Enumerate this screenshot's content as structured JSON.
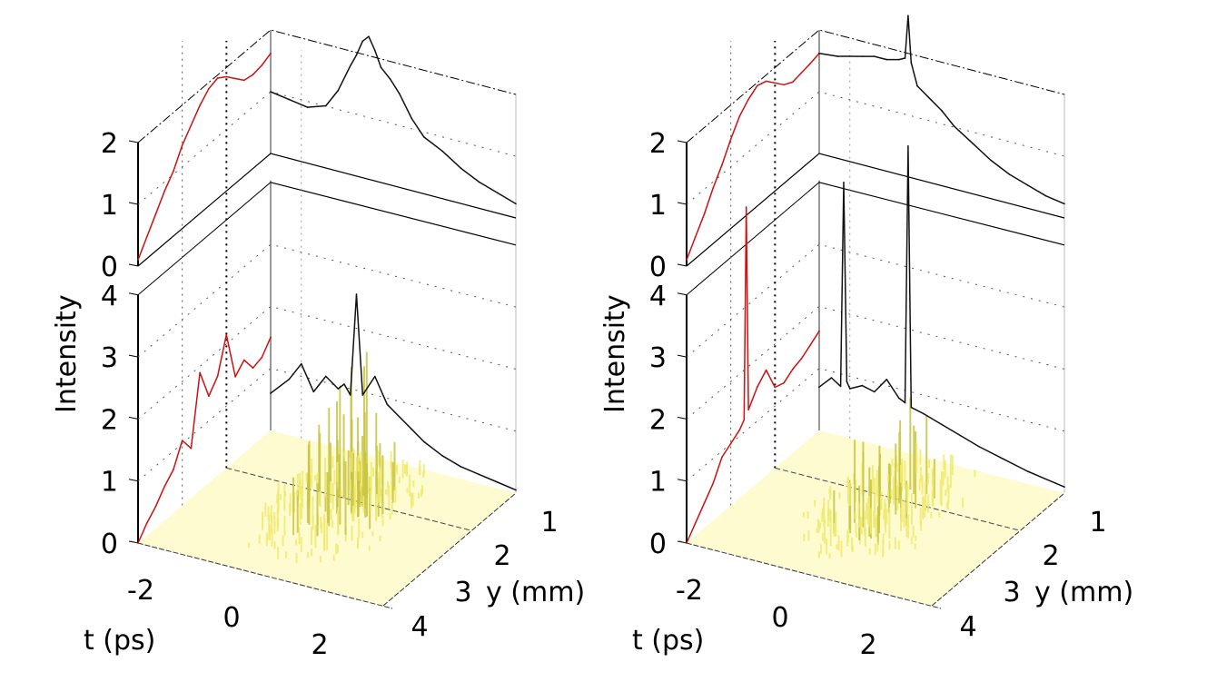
{
  "figure": {
    "panels": 2,
    "background": "#ffffff"
  },
  "colors": {
    "red_projection": "#cc1111",
    "black_projection": "#111111",
    "surface_fill": "#fffbd0",
    "surface_peaks": "#c8c440",
    "axis": "#000000",
    "grid": "#555555",
    "back_edge": "#999999"
  },
  "chart_data": [
    {
      "type": "surface3d",
      "name": "left-panel",
      "title": "",
      "xlabel": "t (ps)",
      "ylabel": "y (mm)",
      "zlabel": "Intensity",
      "x_ticks": [
        "-2",
        "0",
        "2"
      ],
      "x_range": [
        -3,
        4
      ],
      "y_ticks": [
        "1",
        "2",
        "3",
        "4"
      ],
      "y_range": [
        0.5,
        4.5
      ],
      "z_ticks_lower": [
        "0",
        "1",
        "2",
        "3",
        "4"
      ],
      "z_range_lower": [
        0,
        4
      ],
      "z_ticks_upper": [
        "0",
        "1",
        "2"
      ],
      "z_range_upper": [
        0,
        2
      ],
      "grid": true,
      "upper_projection_t": {
        "color": "red",
        "x": [
          -3.0,
          -2.8,
          -2.6,
          -2.4,
          -2.2,
          -2.0,
          -1.8,
          -1.6,
          -1.4,
          -1.2,
          -1.0,
          -0.8,
          -0.6,
          -0.4,
          -0.2,
          0.0
        ],
        "values": [
          0.1,
          0.35,
          0.6,
          0.85,
          1.05,
          1.35,
          1.55,
          1.75,
          1.9,
          1.95,
          1.85,
          1.7,
          1.55,
          1.52,
          1.55,
          1.62
        ]
      },
      "upper_projection_y": {
        "color": "black",
        "x": [
          0.5,
          0.8,
          1.1,
          1.4,
          1.6,
          1.8,
          1.9,
          2.0,
          2.1,
          2.2,
          2.3,
          2.45,
          2.6,
          2.8,
          3.0,
          3.3,
          3.6,
          3.9,
          4.2,
          4.5
        ],
        "values": [
          1.0,
          0.95,
          0.9,
          1.0,
          1.3,
          1.75,
          1.95,
          2.2,
          2.3,
          2.1,
          1.85,
          1.7,
          1.5,
          1.15,
          0.9,
          0.75,
          0.55,
          0.4,
          0.3,
          0.2
        ]
      },
      "lower_projection_t": {
        "color": "red",
        "x": [
          -3.0,
          -2.8,
          -2.6,
          -2.4,
          -2.2,
          -2.0,
          -1.8,
          -1.6,
          -1.4,
          -1.2,
          -1.0,
          -0.8,
          -0.6,
          -0.4,
          -0.2,
          0.0
        ],
        "values": [
          0.0,
          0.2,
          0.35,
          0.55,
          0.7,
          1.05,
          0.8,
          1.9,
          1.4,
          1.6,
          2.15,
          1.35,
          1.5,
          1.25,
          1.3,
          1.5
        ]
      },
      "lower_projection_y": {
        "color": "black",
        "x": [
          0.5,
          0.8,
          1.0,
          1.2,
          1.4,
          1.6,
          1.7,
          1.8,
          1.9,
          2.0,
          2.2,
          2.4,
          2.6,
          2.8,
          3.0,
          3.3,
          3.6,
          3.9,
          4.2,
          4.5
        ],
        "values": [
          0.6,
          0.9,
          1.2,
          0.8,
          1.1,
          0.95,
          1.05,
          0.9,
          2.55,
          0.95,
          1.3,
          0.9,
          0.75,
          0.6,
          0.45,
          0.3,
          0.2,
          0.15,
          0.1,
          0.05
        ]
      },
      "surface_peak_max": 2.8
    },
    {
      "type": "surface3d",
      "name": "right-panel",
      "title": "",
      "xlabel": "t (ps)",
      "ylabel": "y (mm)",
      "zlabel": "Intensity",
      "x_ticks": [
        "-2",
        "0",
        "2"
      ],
      "x_range": [
        -3,
        4
      ],
      "y_ticks": [
        "1",
        "2",
        "3",
        "4"
      ],
      "y_range": [
        0.5,
        4.5
      ],
      "z_ticks_lower": [
        "0",
        "1",
        "2",
        "3",
        "4"
      ],
      "z_range_lower": [
        0,
        4
      ],
      "z_ticks_upper": [
        "0",
        "1",
        "2"
      ],
      "z_range_upper": [
        0,
        2
      ],
      "grid": true,
      "upper_projection_t": {
        "color": "red",
        "x": [
          -3.0,
          -2.8,
          -2.6,
          -2.4,
          -2.2,
          -2.0,
          -1.8,
          -1.6,
          -1.4,
          -1.2,
          -1.0,
          -0.8,
          -0.6,
          -0.4,
          -0.2,
          0.0
        ],
        "values": [
          0.1,
          0.35,
          0.6,
          0.9,
          1.15,
          1.45,
          1.7,
          1.85,
          1.95,
          1.9,
          1.75,
          1.6,
          1.52,
          1.55,
          1.58,
          1.62
        ]
      },
      "upper_projection_y": {
        "color": "black",
        "x": [
          0.5,
          0.8,
          1.0,
          1.2,
          1.4,
          1.6,
          1.8,
          1.9,
          1.95,
          2.0,
          2.1,
          2.3,
          2.5,
          2.7,
          3.0,
          3.3,
          3.6,
          3.9,
          4.2,
          4.5
        ],
        "values": [
          1.62,
          1.65,
          1.7,
          1.75,
          1.8,
          1.8,
          1.85,
          1.9,
          2.6,
          1.85,
          1.5,
          1.35,
          1.2,
          1.0,
          0.8,
          0.6,
          0.45,
          0.35,
          0.25,
          0.2
        ]
      },
      "lower_projection_t": {
        "color": "red",
        "x": [
          -3.0,
          -2.8,
          -2.6,
          -2.4,
          -2.2,
          -2.0,
          -1.8,
          -1.7,
          -1.65,
          -1.6,
          -1.4,
          -1.2,
          -1.0,
          -0.8,
          -0.6,
          -0.4,
          -0.2,
          0.0
        ],
        "values": [
          0.0,
          0.2,
          0.4,
          0.6,
          0.9,
          1.0,
          1.1,
          1.2,
          4.6,
          1.3,
          1.55,
          1.7,
          1.3,
          1.25,
          1.35,
          1.4,
          1.5,
          1.6
        ]
      },
      "lower_projection_y": {
        "color": "black",
        "x": [
          0.5,
          0.7,
          0.85,
          0.9,
          0.95,
          1.0,
          1.2,
          1.4,
          1.6,
          1.8,
          1.9,
          1.95,
          2.0,
          2.2,
          2.5,
          2.8,
          3.1,
          3.5,
          3.9,
          4.5
        ],
        "values": [
          0.7,
          0.9,
          0.8,
          4.1,
          0.9,
          0.8,
          0.9,
          0.85,
          1.1,
          0.85,
          0.8,
          4.95,
          0.75,
          0.7,
          0.6,
          0.5,
          0.4,
          0.3,
          0.2,
          0.1
        ]
      },
      "surface_peak_max": 2.2
    }
  ]
}
